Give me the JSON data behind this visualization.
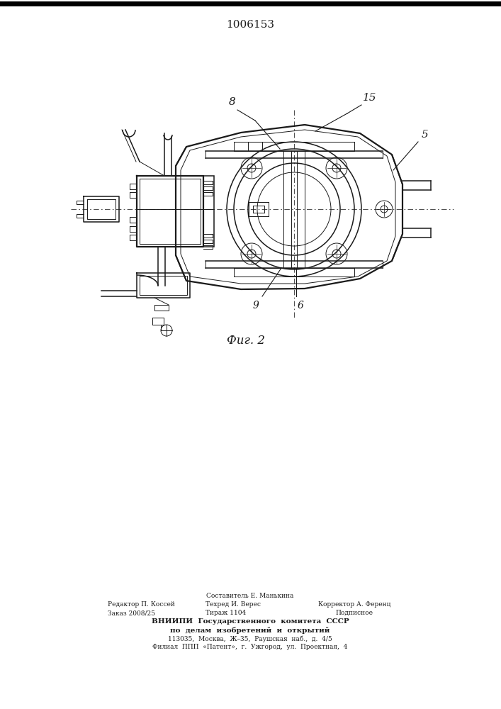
{
  "title": "1006153",
  "fig_label": "Фиг. 2",
  "label_8": "8",
  "label_15": "15",
  "label_5": "5",
  "label_9": "9",
  "label_6": "6",
  "bg_color": "#ffffff",
  "line_color": "#1a1a1a",
  "footer_line0": "Составитель Е. Манькина",
  "footer_line1a": "Техред И. Верес",
  "footer_line1b": "Корректор А. Ференц",
  "footer_line2a": "Тираж 1104",
  "footer_line2b": "Подписное",
  "footer_left0": "Редактор П. Коссей",
  "footer_left1": "Заказ 2008/25",
  "footer_line3": "ВНИИПИ  Государственного  комитета  СССР",
  "footer_line4": "по  делам  изобретений  и  открытий",
  "footer_line5": "113035,  Москва,  Ж–35,  Раушская  наб.,  д.  4/5",
  "footer_line6": "Филиал  ППП  «Патент»,  г.  Ужгород,  ул.  Проектная,  4"
}
